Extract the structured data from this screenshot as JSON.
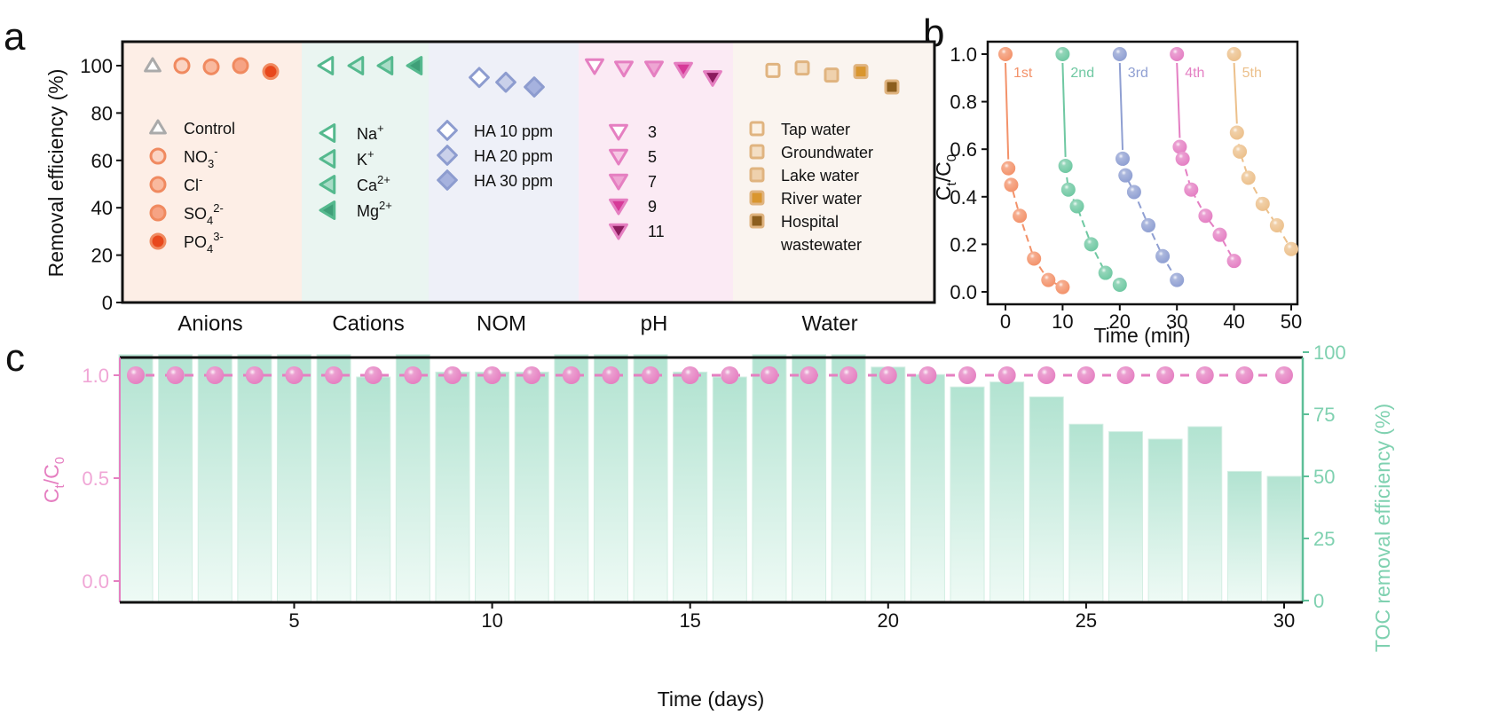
{
  "figure": {
    "panel_labels": [
      "a",
      "b",
      "c"
    ]
  },
  "colors": {
    "anion": "#f08a60",
    "anion_dark": "#e8481c",
    "cation": "#55b98e",
    "nom": "#8d9ccf",
    "ph": "#e57fc1",
    "water": "#e0b480",
    "control": "#aaaaaa",
    "bg_anion": "#fdeee6",
    "bg_cation": "#eaf5f1",
    "bg_nom": "#eef0f8",
    "bg_ph": "#fbeaf4",
    "bg_water": "#faf4ef",
    "cycle_1": "#f3926a",
    "cycle_2": "#6fc8a2",
    "cycle_3": "#8f9fd2",
    "cycle_4": "#e47fc3",
    "cycle_5": "#ecc08b",
    "bar_fill": "#a9e0cc",
    "bar_axis": "#5dbf98",
    "ctc0_line": "#e57fc1"
  },
  "chart_data": [
    {
      "panel": "a",
      "type": "scatter",
      "title": "",
      "xlabel": "",
      "ylabel": "Removal efficiency (%)",
      "ylim": [
        0,
        110
      ],
      "yticks": [
        "0",
        "20",
        "40",
        "60",
        "80",
        "100"
      ],
      "categories": [
        "Anions",
        "Cations",
        "NOM",
        "pH",
        "Water"
      ],
      "groups": [
        {
          "name": "Anions",
          "series": [
            {
              "name": "Control",
              "value": 100
            },
            {
              "name": "NO3-",
              "label_main": "NO",
              "sub": "3",
              "sup": "-",
              "value": 100
            },
            {
              "name": "Cl-",
              "label_main": "Cl",
              "sub": "",
              "sup": "-",
              "value": 99.5
            },
            {
              "name": "SO4 2-",
              "label_main": "SO",
              "sub": "4",
              "sup": "2-",
              "value": 100
            },
            {
              "name": "PO4 3-",
              "label_main": "PO",
              "sub": "4",
              "sup": "3-",
              "value": 97.5
            }
          ]
        },
        {
          "name": "Cations",
          "series": [
            {
              "name": "Na+",
              "label_main": "Na",
              "sup": "+",
              "value": 100
            },
            {
              "name": "K+",
              "label_main": "K",
              "sup": "+",
              "value": 100
            },
            {
              "name": "Ca2+",
              "label_main": "Ca",
              "sup": "2+",
              "value": 100
            },
            {
              "name": "Mg2+",
              "label_main": "Mg",
              "sup": "2+",
              "value": 100
            }
          ]
        },
        {
          "name": "NOM",
          "series": [
            {
              "name": "HA 10 ppm",
              "value": 95
            },
            {
              "name": "HA 20 ppm",
              "value": 93
            },
            {
              "name": "HA 30 ppm",
              "value": 91
            }
          ]
        },
        {
          "name": "pH",
          "series": [
            {
              "name": "3",
              "value": 100
            },
            {
              "name": "5",
              "value": 99
            },
            {
              "name": "7",
              "value": 99
            },
            {
              "name": "9",
              "value": 98.5
            },
            {
              "name": "11",
              "value": 95
            }
          ]
        },
        {
          "name": "Water",
          "series": [
            {
              "name": "Tap water",
              "value": 98
            },
            {
              "name": "Groundwater",
              "value": 99
            },
            {
              "name": "Lake water",
              "value": 96
            },
            {
              "name": "River water",
              "value": 97.5
            },
            {
              "name": "Hospital wastewater",
              "line1": "Hospital",
              "line2": "wastewater",
              "value": 91
            }
          ]
        }
      ]
    },
    {
      "panel": "b",
      "type": "line",
      "xlabel": "Time (min)",
      "ylabel_main": "C",
      "ylabel_sub1": "t",
      "ylabel_mid": "/C",
      "ylabel_sub2": "0",
      "xlim": [
        -2,
        52
      ],
      "ylim": [
        -0.05,
        1.05
      ],
      "xticks": [
        "0",
        "10",
        "20",
        "30",
        "40",
        "50"
      ],
      "yticks": [
        "0.0",
        "0.2",
        "0.4",
        "0.6",
        "0.8",
        "1.0"
      ],
      "series": [
        {
          "name": "1st",
          "x": [
            0,
            0.5,
            1,
            2.5,
            5,
            7.5,
            10
          ],
          "y": [
            1.0,
            0.52,
            0.45,
            0.32,
            0.14,
            0.05,
            0.02
          ]
        },
        {
          "name": "2nd",
          "x": [
            10,
            10.5,
            11,
            12.5,
            15,
            17.5,
            20
          ],
          "y": [
            1.0,
            0.53,
            0.43,
            0.36,
            0.2,
            0.08,
            0.03
          ]
        },
        {
          "name": "3rd",
          "x": [
            20,
            20.5,
            21,
            22.5,
            25,
            27.5,
            30
          ],
          "y": [
            1.0,
            0.56,
            0.49,
            0.42,
            0.28,
            0.15,
            0.05
          ]
        },
        {
          "name": "4th",
          "x": [
            30,
            30.5,
            31,
            32.5,
            35,
            37.5,
            40
          ],
          "y": [
            1.0,
            0.61,
            0.56,
            0.43,
            0.32,
            0.24,
            0.13
          ]
        },
        {
          "name": "5th",
          "x": [
            40,
            40.5,
            41,
            42.5,
            45,
            47.5,
            50
          ],
          "y": [
            1.0,
            0.67,
            0.59,
            0.48,
            0.37,
            0.28,
            0.18
          ]
        }
      ]
    },
    {
      "panel": "c",
      "type": "bar",
      "xlabel": "Time (days)",
      "ylabel_left_main": "C",
      "ylabel_left_sub1": "t",
      "ylabel_left_mid": "/C",
      "ylabel_left_sub2": "0",
      "ylabel_right": "TOC removal efficiency (%)",
      "xlim": [
        0.5,
        30.5
      ],
      "ylim_left": [
        -0.1,
        1.1
      ],
      "ylim_right": [
        0,
        124
      ],
      "xticks": [
        "5",
        "10",
        "15",
        "20",
        "25",
        "30"
      ],
      "yticks_left": [
        "0.0",
        "0.5",
        "1.0"
      ],
      "yticks_right": [
        "0",
        "25",
        "50",
        "75",
        "100"
      ],
      "days": [
        1,
        2,
        3,
        4,
        5,
        6,
        7,
        8,
        9,
        10,
        11,
        12,
        13,
        14,
        15,
        16,
        17,
        18,
        19,
        20,
        21,
        22,
        23,
        24,
        25,
        26,
        27,
        28,
        29,
        30
      ],
      "toc_removal": [
        99,
        99,
        99,
        99,
        99,
        99,
        90,
        99,
        92,
        92,
        92,
        99,
        99,
        99,
        92,
        90,
        99,
        99,
        99,
        94,
        91,
        86,
        88,
        82,
        71,
        68,
        65,
        70,
        52,
        50
      ],
      "ct_c0": [
        1,
        1,
        1,
        1,
        1,
        1,
        1,
        1,
        1,
        1,
        1,
        1,
        1,
        1,
        1,
        1,
        1,
        1,
        1,
        1,
        1,
        1,
        1,
        1,
        1,
        1,
        1,
        1,
        1,
        1
      ]
    }
  ]
}
